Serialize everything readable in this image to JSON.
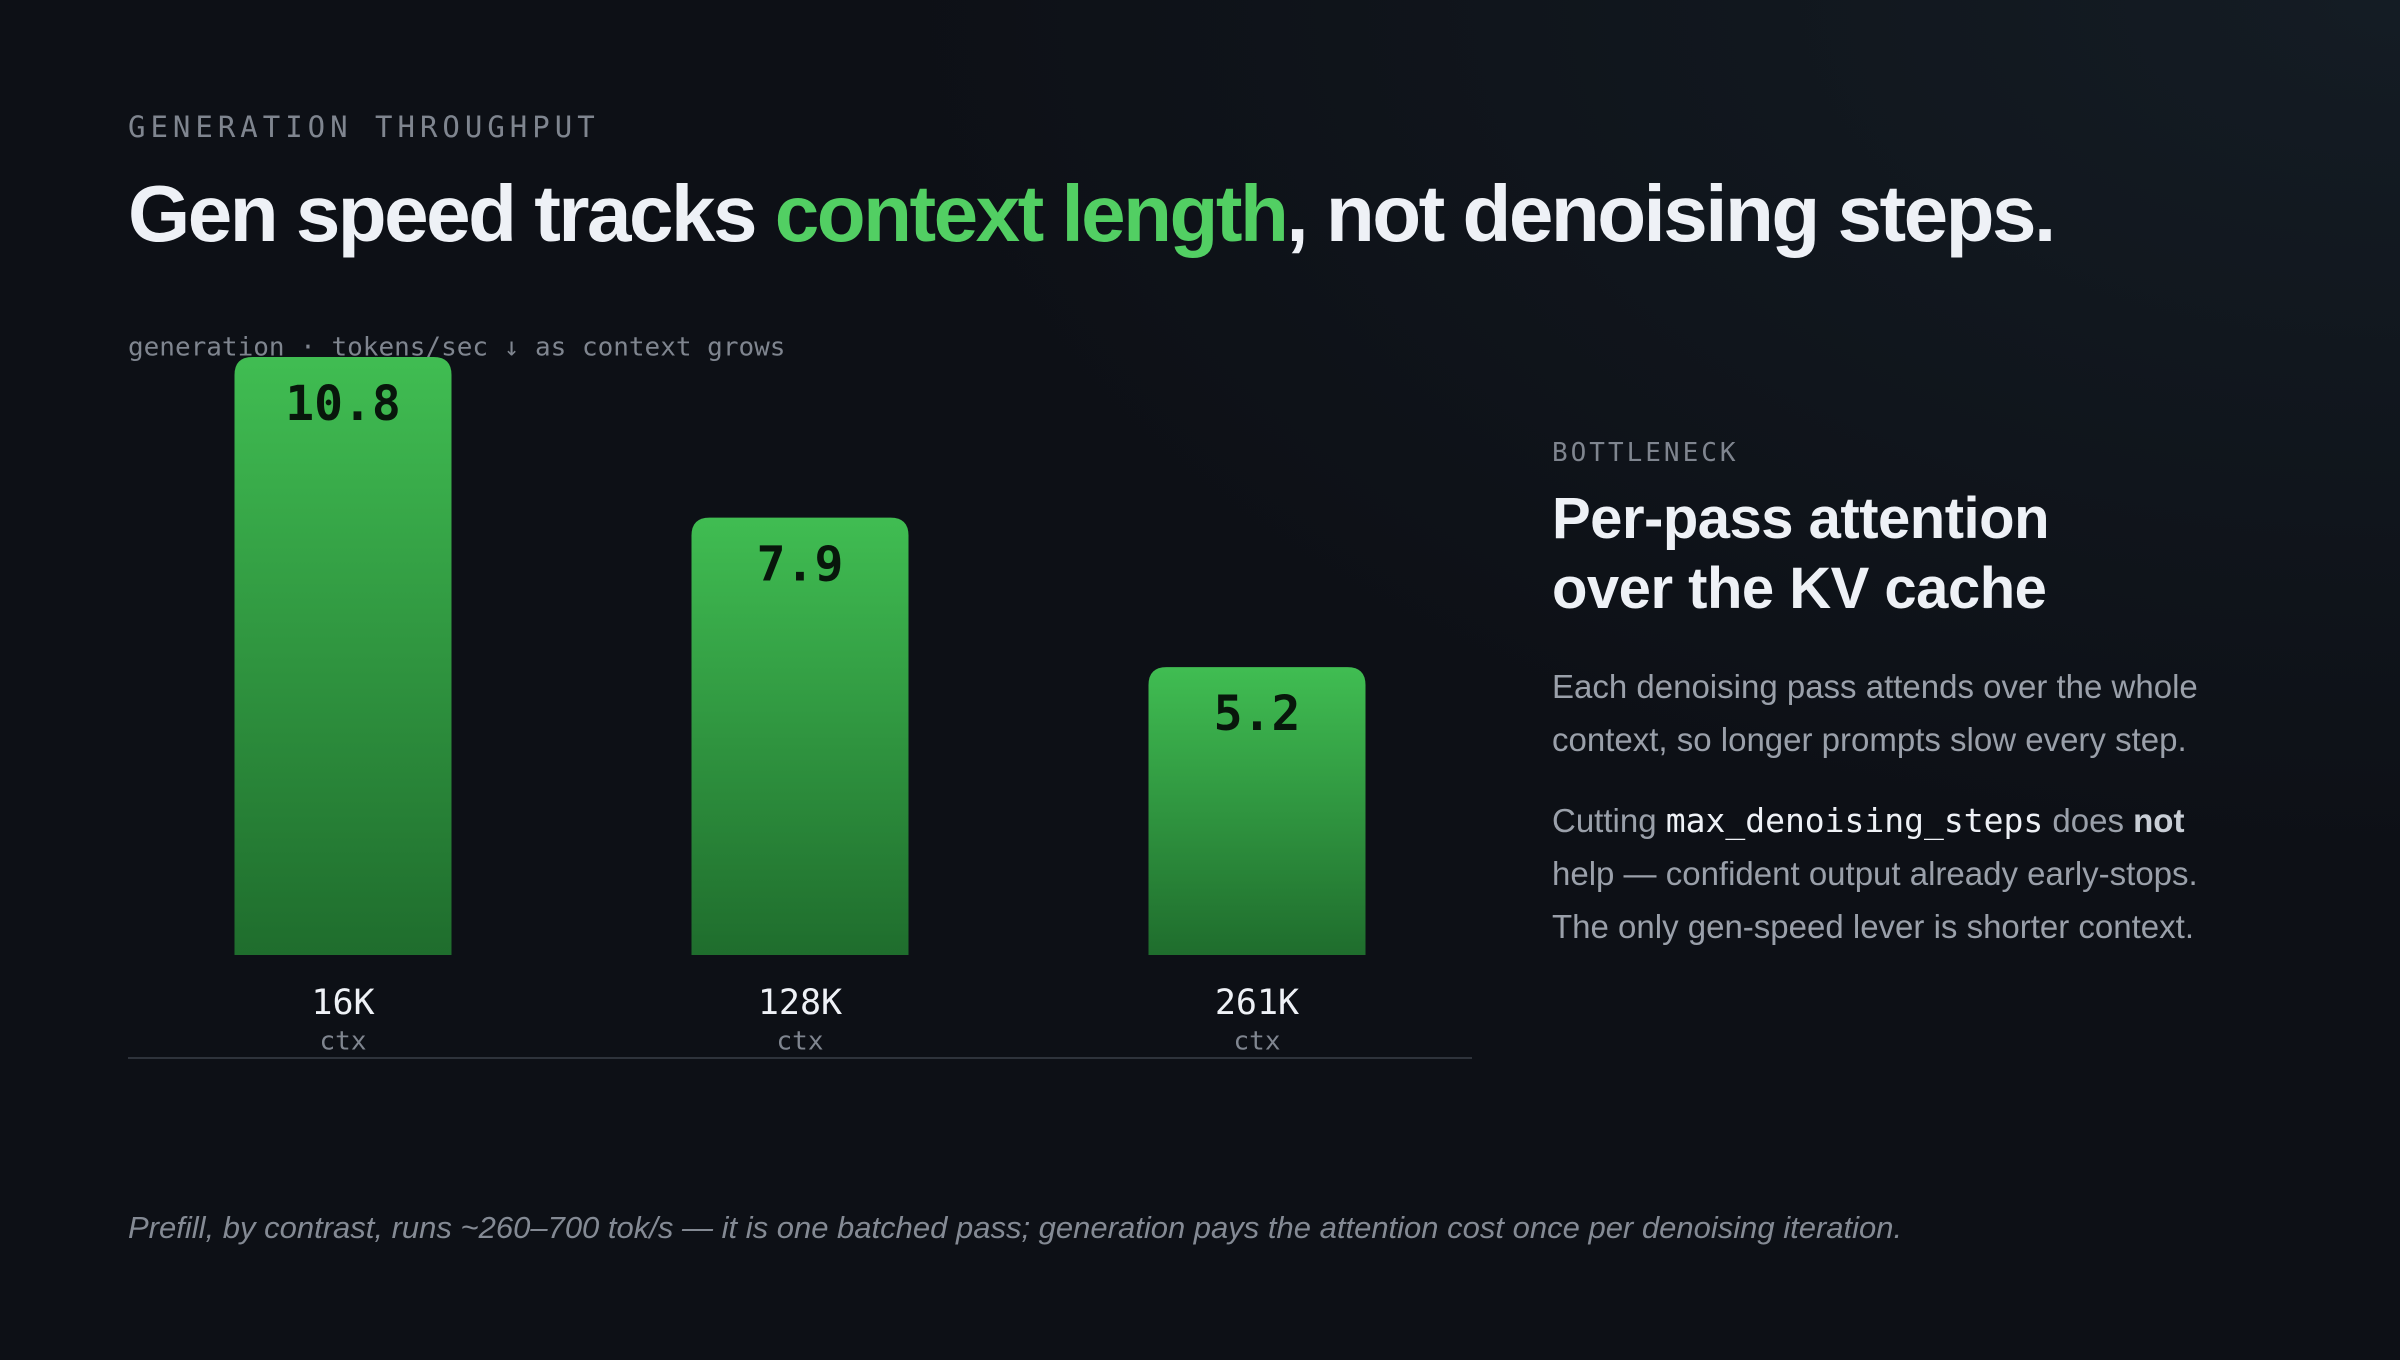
{
  "eyebrow": "GENERATION THROUGHPUT",
  "headline": {
    "before": "Gen speed tracks ",
    "highlight": "context length",
    "after": ", not denoising steps."
  },
  "chart_data": {
    "type": "bar",
    "subtitle": "generation · tokens/sec ↓ as context grows",
    "categories": [
      "16K",
      "128K",
      "261K"
    ],
    "category_sublabel": "ctx",
    "values": [
      10.8,
      7.9,
      5.2
    ],
    "color": "#40bd52",
    "color_bottom": "#1f6d2d"
  },
  "side": {
    "label": "BOTTLENECK",
    "title": "Per-pass attention over the KV cache",
    "paragraph1": "Each denoising pass attends over the whole context, so longer prompts slow every step.",
    "paragraph2": {
      "p1": "Cutting ",
      "code": "max_denoising_steps",
      "p2": " does ",
      "bold": "not",
      "p3": " help — confident output already early-stops. The only gen-speed lever is shorter context."
    }
  },
  "footnote": "Prefill, by contrast, runs ~260–700 tok/s — it is one batched pass; generation pays the attention cost once per denoising iteration."
}
